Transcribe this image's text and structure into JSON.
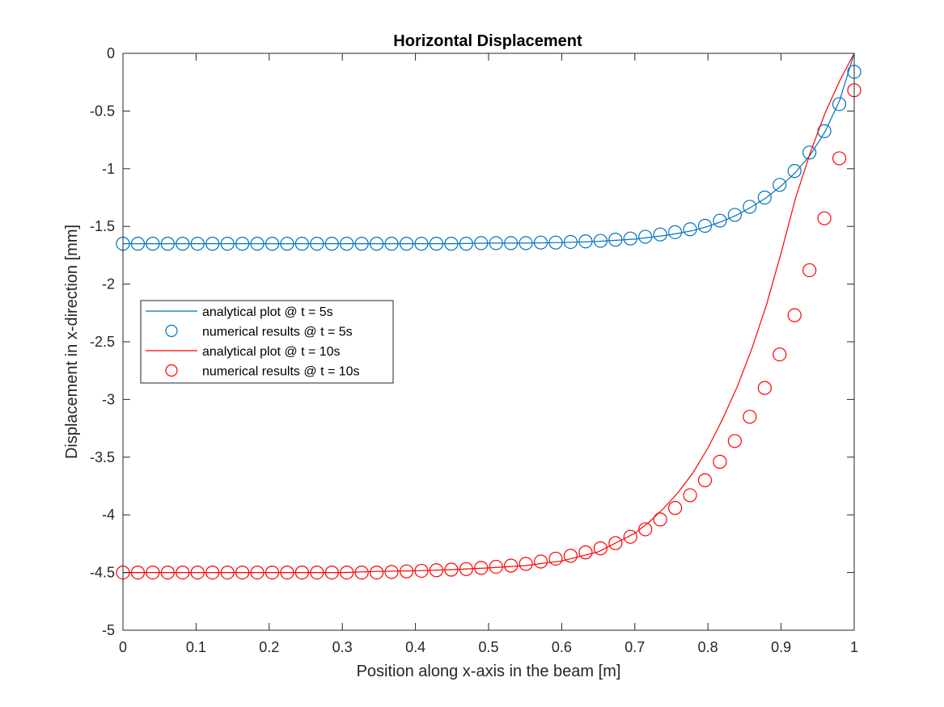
{
  "chart_data": {
    "type": "line",
    "title": "Horizontal Displacement",
    "xlabel": "Position along x-axis in the beam [m]",
    "ylabel": "Displacement in x-direction [mm]",
    "xlim": [
      0,
      1
    ],
    "ylim": [
      -5,
      0
    ],
    "xticks": [
      "0",
      "0.1",
      "0.2",
      "0.3",
      "0.4",
      "0.5",
      "0.6",
      "0.7",
      "0.8",
      "0.9",
      "1"
    ],
    "yticks": [
      "0",
      "-0.5",
      "-1",
      "-1.5",
      "-2",
      "-2.5",
      "-3",
      "-3.5",
      "-4",
      "-4.5",
      "-5"
    ],
    "grid": false,
    "legend_position": "west",
    "x_markers": [
      0,
      0.0204,
      0.0408,
      0.0612,
      0.0816,
      0.102,
      0.1224,
      0.1429,
      0.1633,
      0.1837,
      0.2041,
      0.2245,
      0.2449,
      0.2653,
      0.2857,
      0.3061,
      0.3265,
      0.3469,
      0.3673,
      0.3878,
      0.4082,
      0.4286,
      0.449,
      0.4694,
      0.4898,
      0.5102,
      0.5306,
      0.551,
      0.5714,
      0.5918,
      0.6122,
      0.6327,
      0.6531,
      0.6735,
      0.6939,
      0.7143,
      0.7347,
      0.7551,
      0.7755,
      0.7959,
      0.8163,
      0.8367,
      0.8571,
      0.8776,
      0.898,
      0.9184,
      0.9388,
      0.9592,
      0.9796,
      1.0
    ],
    "x_line": [
      0,
      0.05,
      0.1,
      0.15,
      0.2,
      0.25,
      0.3,
      0.35,
      0.4,
      0.45,
      0.5,
      0.55,
      0.6,
      0.65,
      0.7,
      0.72,
      0.74,
      0.76,
      0.78,
      0.8,
      0.82,
      0.84,
      0.86,
      0.88,
      0.9,
      0.92,
      0.94,
      0.96,
      0.98,
      1.0
    ],
    "series": [
      {
        "name": "analytical plot @ t = 5s",
        "kind": "line",
        "color": "#0072BD",
        "values": [
          -1.65,
          -1.65,
          -1.65,
          -1.65,
          -1.65,
          -1.65,
          -1.65,
          -1.65,
          -1.65,
          -1.65,
          -1.645,
          -1.645,
          -1.64,
          -1.63,
          -1.61,
          -1.595,
          -1.58,
          -1.56,
          -1.535,
          -1.5,
          -1.455,
          -1.4,
          -1.33,
          -1.25,
          -1.15,
          -1.03,
          -0.88,
          -0.68,
          -0.41,
          0
        ]
      },
      {
        "name": "numerical results @ t = 5s",
        "kind": "markers",
        "color": "#0072BD",
        "values": [
          -1.65,
          -1.65,
          -1.65,
          -1.65,
          -1.65,
          -1.65,
          -1.65,
          -1.65,
          -1.65,
          -1.65,
          -1.65,
          -1.65,
          -1.65,
          -1.65,
          -1.65,
          -1.65,
          -1.65,
          -1.65,
          -1.65,
          -1.65,
          -1.65,
          -1.65,
          -1.65,
          -1.65,
          -1.645,
          -1.645,
          -1.645,
          -1.645,
          -1.64,
          -1.64,
          -1.635,
          -1.63,
          -1.625,
          -1.615,
          -1.605,
          -1.59,
          -1.57,
          -1.55,
          -1.525,
          -1.495,
          -1.45,
          -1.4,
          -1.33,
          -1.25,
          -1.14,
          -1.02,
          -0.86,
          -0.675,
          -0.44,
          -0.16
        ]
      },
      {
        "name": "analytical plot @ t = 10s",
        "kind": "line",
        "color": "#FF0000",
        "values": [
          -4.5,
          -4.5,
          -4.5,
          -4.5,
          -4.5,
          -4.5,
          -4.5,
          -4.49,
          -4.485,
          -4.475,
          -4.46,
          -4.44,
          -4.4,
          -4.32,
          -4.16,
          -4.06,
          -3.94,
          -3.8,
          -3.63,
          -3.42,
          -3.17,
          -2.89,
          -2.56,
          -2.18,
          -1.73,
          -1.25,
          -0.86,
          -0.52,
          -0.24,
          0
        ]
      },
      {
        "name": "numerical results @ t = 10s",
        "kind": "markers",
        "color": "#FF0000",
        "values": [
          -4.5,
          -4.5,
          -4.5,
          -4.5,
          -4.5,
          -4.5,
          -4.5,
          -4.5,
          -4.5,
          -4.5,
          -4.5,
          -4.5,
          -4.5,
          -4.5,
          -4.5,
          -4.5,
          -4.5,
          -4.5,
          -4.495,
          -4.49,
          -4.485,
          -4.48,
          -4.475,
          -4.47,
          -4.46,
          -4.45,
          -4.44,
          -4.425,
          -4.405,
          -4.38,
          -4.355,
          -4.325,
          -4.29,
          -4.245,
          -4.19,
          -4.125,
          -4.04,
          -3.94,
          -3.83,
          -3.7,
          -3.54,
          -3.36,
          -3.15,
          -2.9,
          -2.61,
          -2.27,
          -1.88,
          -1.43,
          -0.91,
          -0.32
        ]
      }
    ]
  }
}
